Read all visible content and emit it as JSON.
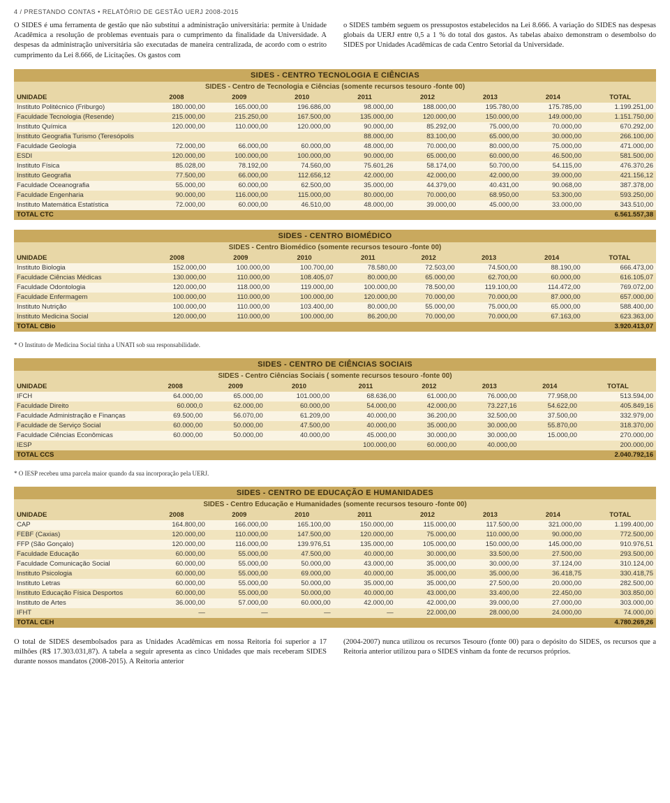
{
  "header": "4 / PRESTANDO CONTAS • RELATÓRIO DE GESTÃO UERJ 2008-2015",
  "intro": {
    "left": "O SIDES é uma ferramenta de gestão que não substitui a administração universitária: permite à Unidade Acadêmica a resolução de problemas eventuais para o cumprimento da finalidade da Universidade. A despesas da administração universitária são executadas de maneira centralizada, de acordo com o estrito cumprimento da Lei 8.666, de Licitações. Os gastos com",
    "right": "o SIDES também seguem os pressupostos estabelecidos na Lei 8.666. A variação do SIDES nas despesas globais da UERJ entre 0,5 a 1 % do total dos gastos.\nAs tabelas abaixo demonstram o desembolso do SIDES por Unidades Acadêmicas de cada Centro Setorial da Universidade."
  },
  "columns": [
    "UNIDADE",
    "2008",
    "2009",
    "2010",
    "2011",
    "2012",
    "2013",
    "2014",
    "TOTAL"
  ],
  "tables": [
    {
      "title": "SIDES - CENTRO TECNOLOGIA E CIÊNCIAS",
      "subtitle": "SIDES - Centro de Tecnologia e Ciências (somente recursos tesouro -fonte 00)",
      "rows": [
        [
          "Instituto Politécnico (Friburgo)",
          "180.000,00",
          "165.000,00",
          "196.686,00",
          "98.000,00",
          "188.000,00",
          "195.780,00",
          "175.785,00",
          "1.199.251,00"
        ],
        [
          "Faculdade Tecnologia (Resende)",
          "215.000,00",
          "215.250,00",
          "167.500,00",
          "135.000,00",
          "120.000,00",
          "150.000,00",
          "149.000,00",
          "1.151.750,00"
        ],
        [
          "Instituto Química",
          "120.000,00",
          "110.000,00",
          "120.000,00",
          "90.000,00",
          "85.292,00",
          "75.000,00",
          "70.000,00",
          "670.292,00"
        ],
        [
          "Instituto Geografia Turismo (Teresópolis",
          "",
          "",
          "",
          "88.000,00",
          "83.100,00",
          "65.000,00",
          "30.000,00",
          "266.100,00"
        ],
        [
          "Faculdade Geologia",
          "72.000,00",
          "66.000,00",
          "60.000,00",
          "48.000,00",
          "70.000,00",
          "80.000,00",
          "75.000,00",
          "471.000,00"
        ],
        [
          "ESDI",
          "120.000,00",
          "100.000,00",
          "100.000,00",
          "90.000,00",
          "65.000,00",
          "60.000,00",
          "46.500,00",
          "581.500,00"
        ],
        [
          "Instituto Física",
          "85.028,00",
          "78.192,00",
          "74.560,00",
          "75.601,26",
          "58.174,00",
          "50.700,00",
          "54.115,00",
          "476.370,26"
        ],
        [
          "Instituto Geografia",
          "77.500,00",
          "66.000,00",
          "112.656,12",
          "42.000,00",
          "42.000,00",
          "42.000,00",
          "39.000,00",
          "421.156,12"
        ],
        [
          "Faculdade Oceanografia",
          "55.000,00",
          "60.000,00",
          "62.500,00",
          "35.000,00",
          "44.379,00",
          "40.431,00",
          "90.068,00",
          "387.378,00"
        ],
        [
          "Faculdade Engenharia",
          "90.000,00",
          "116.000,00",
          "115.000,00",
          "80.000,00",
          "70.000,00",
          "68.950,00",
          "53.300,00",
          "593.250,00"
        ],
        [
          "Instituto Matemática Estatística",
          "72.000,00",
          "60.000,00",
          "46.510,00",
          "48.000,00",
          "39.000,00",
          "45.000,00",
          "33.000,00",
          "343.510,00"
        ]
      ],
      "total": [
        "TOTAL CTC",
        "",
        "",
        "",
        "",
        "",
        "",
        "",
        "6.561.557,38"
      ]
    },
    {
      "title": "SIDES - CENTRO BIOMÉDICO",
      "subtitle": "SIDES - Centro Biomédico (somente recursos tesouro -fonte 00)",
      "rows": [
        [
          "Instituto Biologia",
          "152.000,00",
          "100.000,00",
          "100.700,00",
          "78.580,00",
          "72.503,00",
          "74.500,00",
          "88.190,00",
          "666.473,00"
        ],
        [
          "Faculdade Ciências Médicas",
          "130.000,00",
          "110.000,00",
          "108.405,07",
          "80.000,00",
          "65.000,00",
          "62.700,00",
          "60.000,00",
          "616.105,07"
        ],
        [
          "Faculdade Odontologia",
          "120.000,00",
          "118.000,00",
          "119.000,00",
          "100.000,00",
          "78.500,00",
          "119.100,00",
          "114.472,00",
          "769.072,00"
        ],
        [
          "Faculdade Enfermagem",
          "100.000,00",
          "110.000,00",
          "100.000,00",
          "120.000,00",
          "70.000,00",
          "70.000,00",
          "87.000,00",
          "657.000,00"
        ],
        [
          "Instituto Nutrição",
          "100.000,00",
          "110.000,00",
          "103.400,00",
          "80.000,00",
          "55.000,00",
          "75.000,00",
          "65.000,00",
          "588.400,00"
        ],
        [
          "Instituto Medicina Social",
          "120.000,00",
          "110.000,00",
          "100.000,00",
          "86.200,00",
          "70.000,00",
          "70.000,00",
          "67.163,00",
          "623.363,00"
        ]
      ],
      "total": [
        "TOTAL CBio",
        "",
        "",
        "",
        "",
        "",
        "",
        "",
        "3.920.413,07"
      ],
      "footnote": "* O Instituto de Medicina Social tinha a UNATI sob sua responsabilidade."
    },
    {
      "title": "SIDES - CENTRO DE CIÊNCIAS SOCIAIS",
      "subtitle": "SIDES - Centro Ciências Sociais ( somente recursos tesouro -fonte 00)",
      "rows": [
        [
          "IFCH",
          "64.000,00",
          "65.000,00",
          "101.000,00",
          "68.636,00",
          "61.000,00",
          "76.000,00",
          "77.958,00",
          "513.594,00"
        ],
        [
          "Faculdade Direito",
          "60.000,0",
          "62.000,00",
          "60.000,00",
          "54.000,00",
          "42.000,00",
          "73.227,16",
          "54.622,00",
          "405.849,16"
        ],
        [
          "Faculdade Administração e Finanças",
          "69.500,00",
          "56.070,00",
          "61.209,00",
          "40.000,00",
          "36.200,00",
          "32.500,00",
          "37.500,00",
          "332.979,00"
        ],
        [
          "Faculdade de Serviço Social",
          "60.000,00",
          "50.000,00",
          "47.500,00",
          "40.000,00",
          "35.000,00",
          "30.000,00",
          "55.870,00",
          "318.370,00"
        ],
        [
          "Faculdade Ciências Econômicas",
          "60.000,00",
          "50.000,00",
          "40.000,00",
          "45.000,00",
          "30.000,00",
          "30.000,00",
          "15.000,00",
          "270.000,00"
        ],
        [
          "IESP",
          "",
          "",
          "",
          "100.000,00",
          "60.000,00",
          "40.000,00",
          "",
          "200.000,00"
        ]
      ],
      "total": [
        "TOTAL CCS",
        "",
        "",
        "",
        "",
        "",
        "",
        "",
        "2.040.792,16"
      ],
      "footnote": "* O IESP recebeu uma parcela maior quando da sua incorporação pela UERJ."
    },
    {
      "title": "SIDES - CENTRO DE EDUCAÇÃO E HUMANIDADES",
      "subtitle": "SIDES - Centro Educação e Humanidades (somente recursos tesouro -fonte 00)",
      "rows": [
        [
          "CAP",
          "164.800,00",
          "166.000,00",
          "165.100,00",
          "150.000,00",
          "115.000,00",
          "117.500,00",
          "321.000,00",
          "1.199.400,00"
        ],
        [
          "FEBF (Caxias)",
          "120.000,00",
          "110.000,00",
          "147.500,00",
          "120.000,00",
          "75.000,00",
          "110.000,00",
          "90.000,00",
          "772.500,00"
        ],
        [
          "FFP (São Gonçalo)",
          "120.000,00",
          "116.000,00",
          "139.976,51",
          "135.000,00",
          "105.000,00",
          "150.000,00",
          "145.000,00",
          "910.976,51"
        ],
        [
          "Faculdade Educação",
          "60.000,00",
          "55.000,00",
          "47.500,00",
          "40.000,00",
          "30.000,00",
          "33.500,00",
          "27.500,00",
          "293.500,00"
        ],
        [
          "Faculdade Comunicação Social",
          "60.000,00",
          "55.000,00",
          "50.000,00",
          "43.000,00",
          "35.000,00",
          "30.000,00",
          "37.124,00",
          "310.124,00"
        ],
        [
          "Instituto Psicologia",
          "60.000,00",
          "55.000,00",
          "69.000,00",
          "40.000,00",
          "35.000,00",
          "35.000,00",
          "36.418,75",
          "330.418,75"
        ],
        [
          "Instituto Letras",
          "60.000,00",
          "55.000,00",
          "50.000,00",
          "35.000,00",
          "35.000,00",
          "27.500,00",
          "20.000,00",
          "282.500,00"
        ],
        [
          "Instituto Educação Física Desportos",
          "60.000,00",
          "55.000,00",
          "50.000,00",
          "40.000,00",
          "43.000,00",
          "33.400,00",
          "22.450,00",
          "303.850,00"
        ],
        [
          "Instituto de Artes",
          "36.000,00",
          "57.000,00",
          "60.000,00",
          "42.000,00",
          "42.000,00",
          "39.000,00",
          "27.000,00",
          "303.000,00"
        ],
        [
          "IFHT",
          "—",
          "—",
          "—",
          "—",
          "22.000,00",
          "28.000,00",
          "24.000,00",
          "74.000,00"
        ]
      ],
      "total": [
        "TOTAL CEH",
        "",
        "",
        "",
        "",
        "",
        "",
        "",
        "4.780.269,26"
      ]
    }
  ],
  "outro": {
    "left": "O total de SIDES desembolsados para as Unidades Acadêmicas em nossa Reitoria foi superior a 17 milhões (R$ 17.303.031,87). A tabela a seguir apresenta as cinco Unidades que mais receberam SIDES durante nossos mandatos (2008-2015). A Reitoria anterior",
    "right": "(2004-2007) nunca utilizou os recursos Tesouro (fonte 00) para o depósito do SIDES, os recursos que a Reitoria anterior utilizou para o SIDES vinham da fonte de recursos próprios."
  }
}
